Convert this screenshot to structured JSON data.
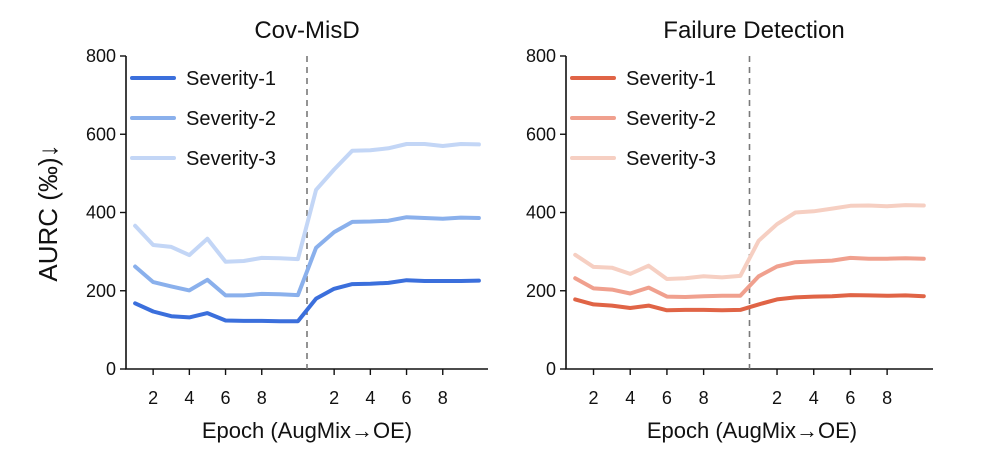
{
  "chart_data": [
    {
      "type": "line",
      "title": "Cov-MisD",
      "xlabel": "Epoch (AugMix→OE)",
      "ylabel": "AURC (‰)↓",
      "ylim": [
        0,
        800
      ],
      "yticks": [
        "0",
        "200",
        "400",
        "600",
        "800"
      ],
      "xticks": [
        "2",
        "4",
        "6",
        "8",
        "2",
        "4",
        "6",
        "8"
      ],
      "x": [
        1,
        2,
        3,
        4,
        5,
        6,
        7,
        8,
        9,
        10,
        11,
        12,
        13,
        14,
        15,
        16,
        17,
        18,
        19,
        20
      ],
      "phase_boundary": 10.5,
      "legend_position": "top-left",
      "series": [
        {
          "name": "Severity-1",
          "color": "#3b6fdc",
          "values": [
            168,
            147,
            135,
            132,
            143,
            124,
            123,
            123,
            122,
            122,
            180,
            205,
            217,
            218,
            220,
            227,
            225,
            225,
            225,
            226
          ]
        },
        {
          "name": "Severity-2",
          "color": "#8ab0ec",
          "values": [
            262,
            222,
            211,
            201,
            228,
            188,
            188,
            192,
            191,
            189,
            310,
            350,
            376,
            377,
            379,
            388,
            386,
            384,
            387,
            386
          ]
        },
        {
          "name": "Severity-3",
          "color": "#c3d6f6",
          "values": [
            366,
            317,
            312,
            291,
            333,
            274,
            276,
            284,
            283,
            281,
            458,
            510,
            558,
            559,
            564,
            575,
            575,
            570,
            575,
            574
          ]
        }
      ]
    },
    {
      "type": "line",
      "title": "Failure Detection",
      "xlabel": "Epoch (AugMix→OE)",
      "ylabel": "",
      "ylim": [
        0,
        800
      ],
      "yticks": [
        "0",
        "200",
        "400",
        "600",
        "800"
      ],
      "xticks": [
        "2",
        "4",
        "6",
        "8",
        "2",
        "4",
        "6",
        "8"
      ],
      "x": [
        1,
        2,
        3,
        4,
        5,
        6,
        7,
        8,
        9,
        10,
        11,
        12,
        13,
        14,
        15,
        16,
        17,
        18,
        19,
        20
      ],
      "phase_boundary": 10.5,
      "legend_position": "top-left",
      "series": [
        {
          "name": "Severity-1",
          "color": "#e06446",
          "values": [
            178,
            165,
            162,
            156,
            162,
            150,
            151,
            151,
            150,
            151,
            165,
            178,
            183,
            185,
            186,
            189,
            188,
            187,
            188,
            186
          ]
        },
        {
          "name": "Severity-2",
          "color": "#f0a08e",
          "values": [
            232,
            206,
            203,
            193,
            208,
            185,
            184,
            186,
            187,
            187,
            237,
            262,
            273,
            275,
            277,
            284,
            282,
            282,
            283,
            282
          ]
        },
        {
          "name": "Severity-3",
          "color": "#f6cfc2",
          "values": [
            292,
            261,
            259,
            243,
            264,
            230,
            232,
            237,
            234,
            238,
            328,
            370,
            400,
            403,
            410,
            417,
            418,
            416,
            419,
            418
          ]
        }
      ]
    }
  ]
}
